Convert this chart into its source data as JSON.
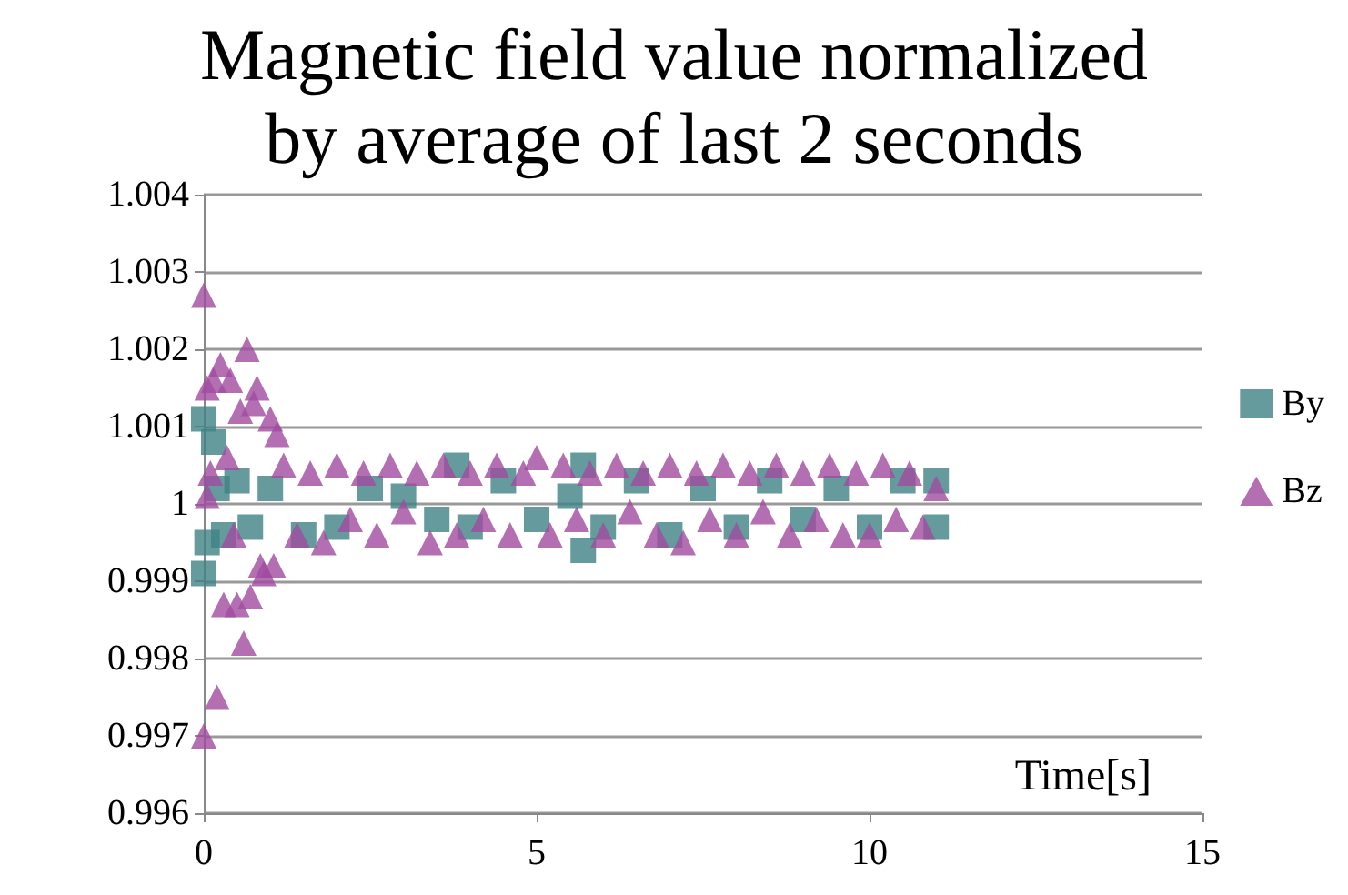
{
  "chart_data": {
    "type": "scatter",
    "title": "Magnetic field value normalized\nby average of last 2 seconds",
    "xlabel": "Time[s]",
    "xlim": [
      0,
      15
    ],
    "xticks": [
      0,
      5,
      10,
      15
    ],
    "ylim": [
      0.996,
      1.004
    ],
    "yticks": [
      0.996,
      0.997,
      0.998,
      0.999,
      {
        "value": 1,
        "label": "1"
      },
      1.001,
      1.002,
      1.003,
      1.004
    ],
    "grid": "y",
    "legend": "right",
    "series": [
      {
        "name": "By",
        "color": "#3f8284",
        "marker": "square",
        "x": [
          0,
          0,
          0.05,
          0.15,
          0.2,
          0.3,
          0.5,
          0.7,
          1,
          1.5,
          2,
          2.5,
          3,
          3.5,
          3.8,
          4,
          4.5,
          5,
          5.5,
          5.7,
          5.7,
          6,
          6.5,
          7,
          7.5,
          8,
          8.5,
          9,
          9.5,
          10,
          10.5,
          11,
          11
        ],
        "values": [
          1.0011,
          0.9991,
          0.9995,
          1.0008,
          1.0002,
          0.9996,
          1.0003,
          0.9997,
          1.0002,
          0.9996,
          0.9997,
          1.0002,
          1.0001,
          0.9998,
          1.0005,
          0.9997,
          1.0003,
          0.9998,
          1.0001,
          0.9994,
          1.0005,
          0.9997,
          1.0003,
          0.9996,
          1.0002,
          0.9997,
          1.0003,
          0.9998,
          1.0002,
          0.9997,
          1.0003,
          0.9997,
          1.0003
        ]
      },
      {
        "name": "Bz",
        "color": "#a04b9f",
        "marker": "triangle",
        "x": [
          0,
          0,
          0.05,
          0.05,
          0.1,
          0.15,
          0.2,
          0.25,
          0.3,
          0.35,
          0.4,
          0.45,
          0.5,
          0.55,
          0.6,
          0.65,
          0.7,
          0.75,
          0.8,
          0.85,
          0.9,
          1,
          1.05,
          1.1,
          1.2,
          1.4,
          1.6,
          1.8,
          2,
          2.2,
          2.4,
          2.6,
          2.8,
          3,
          3.2,
          3.4,
          3.6,
          3.8,
          4,
          4.2,
          4.4,
          4.6,
          4.8,
          5,
          5.2,
          5.4,
          5.6,
          5.8,
          6,
          6.2,
          6.4,
          6.6,
          6.8,
          7,
          7.2,
          7.4,
          7.6,
          7.8,
          8,
          8.2,
          8.4,
          8.6,
          8.8,
          9,
          9.2,
          9.4,
          9.6,
          9.8,
          10,
          10.2,
          10.4,
          10.6,
          10.8,
          11
        ],
        "values": [
          0.997,
          1.0027,
          1.0001,
          1.0015,
          1.0004,
          1.0016,
          0.9975,
          1.0018,
          0.9987,
          1.0006,
          1.0016,
          0.9996,
          0.9987,
          1.0012,
          0.9982,
          1.002,
          0.9988,
          1.0013,
          1.0015,
          0.9992,
          0.9991,
          1.0011,
          0.9992,
          1.0009,
          1.0005,
          0.9996,
          1.0004,
          0.9995,
          1.0005,
          0.9998,
          1.0004,
          0.9996,
          1.0005,
          0.9999,
          1.0004,
          0.9995,
          1.0005,
          0.9996,
          1.0004,
          0.9998,
          1.0005,
          0.9996,
          1.0004,
          1.0006,
          0.9996,
          1.0005,
          0.9998,
          1.0004,
          0.9996,
          1.0005,
          0.9999,
          1.0004,
          0.9996,
          1.0005,
          0.9995,
          1.0004,
          0.9998,
          1.0005,
          0.9996,
          1.0004,
          0.9999,
          1.0005,
          0.9996,
          1.0004,
          0.9998,
          1.0005,
          0.9996,
          1.0004,
          0.9996,
          1.0005,
          0.9998,
          1.0004,
          0.9997,
          1.0002
        ]
      }
    ]
  }
}
